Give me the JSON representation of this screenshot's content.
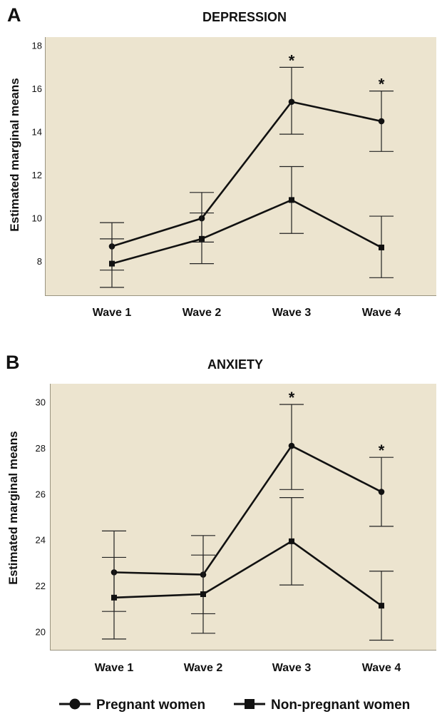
{
  "colors": {
    "plot_bg": "#ece4cf",
    "ink": "#111111"
  },
  "legend": [
    {
      "label": "Pregnant women",
      "marker": "circle"
    },
    {
      "label": "Non-pregnant women",
      "marker": "square"
    }
  ],
  "chart_data": [
    {
      "type": "line",
      "panel": "A",
      "title": "DEPRESSION",
      "ylabel": "Estimated marginal means",
      "xlabel": "",
      "categories": [
        "Wave 1",
        "Wave 2",
        "Wave 3",
        "Wave 4"
      ],
      "yticks": [
        8,
        10,
        12,
        14,
        16,
        18
      ],
      "ylim": [
        6.4,
        18.4
      ],
      "grid": false,
      "significance_marks": [
        {
          "category": "Wave 3",
          "text": "*"
        },
        {
          "category": "Wave 4",
          "text": "*"
        }
      ],
      "series": [
        {
          "name": "Pregnant women",
          "marker": "circle",
          "values": [
            8.7,
            10.0,
            15.4,
            14.5
          ],
          "ci_lower": [
            7.6,
            8.9,
            13.9,
            13.1
          ],
          "ci_upper": [
            9.8,
            11.2,
            17.0,
            15.9
          ]
        },
        {
          "name": "Non-pregnant women",
          "marker": "square",
          "values": [
            7.9,
            9.05,
            10.85,
            8.65
          ],
          "ci_lower": [
            6.8,
            7.9,
            9.3,
            7.25
          ],
          "ci_upper": [
            9.05,
            10.25,
            12.4,
            10.1
          ]
        }
      ]
    },
    {
      "type": "line",
      "panel": "B",
      "title": "ANXIETY",
      "ylabel": "Estimated marginal means",
      "xlabel": "",
      "categories": [
        "Wave 1",
        "Wave 2",
        "Wave 3",
        "Wave 4"
      ],
      "yticks": [
        20,
        22,
        24,
        26,
        28,
        30
      ],
      "ylim": [
        19.2,
        30.8
      ],
      "grid": false,
      "significance_marks": [
        {
          "category": "Wave 3",
          "text": "*"
        },
        {
          "category": "Wave 4",
          "text": "*"
        }
      ],
      "series": [
        {
          "name": "Pregnant women",
          "marker": "circle",
          "values": [
            22.6,
            22.5,
            28.1,
            26.1
          ],
          "ci_lower": [
            20.9,
            20.8,
            26.2,
            24.6
          ],
          "ci_upper": [
            24.4,
            24.2,
            29.9,
            27.6
          ]
        },
        {
          "name": "Non-pregnant women",
          "marker": "square",
          "values": [
            21.5,
            21.65,
            23.95,
            21.15
          ],
          "ci_lower": [
            19.7,
            19.95,
            22.05,
            19.65
          ],
          "ci_upper": [
            23.25,
            23.35,
            25.85,
            22.65
          ]
        }
      ]
    }
  ]
}
